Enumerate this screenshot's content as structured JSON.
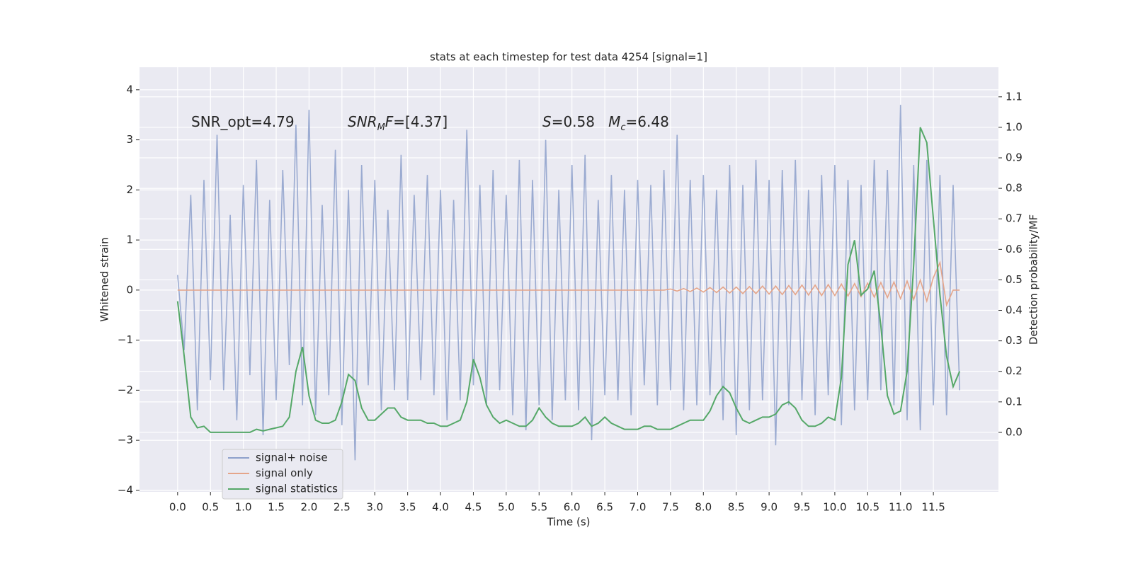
{
  "chart_data": {
    "type": "line",
    "title": "stats at each timestep for test data 4254 [signal=1]",
    "xlabel": "Time (s)",
    "ylabel": "Whitened strain",
    "y2label": "Detection probability/MF",
    "annotations": [
      [
        {
          "text": "SNR_opt=4.79"
        }
      ],
      [
        {
          "text": "SNR",
          "italic": true
        },
        {
          "text": "M",
          "italic": true,
          "sub": true
        },
        {
          "text": "F",
          "italic": true
        },
        {
          "text": "=[4.37]"
        }
      ],
      [
        {
          "text": "S",
          "italic": true
        },
        {
          "text": "=0.58   "
        },
        {
          "text": "M",
          "italic": true
        },
        {
          "text": "c",
          "italic": true,
          "sub": true
        },
        {
          "text": "=6.48"
        }
      ]
    ],
    "x": [
      0,
      0.1,
      0.2,
      0.3,
      0.4,
      0.5,
      0.6,
      0.7,
      0.8,
      0.9,
      1,
      1.1,
      1.2,
      1.3,
      1.4,
      1.5,
      1.6,
      1.7,
      1.8,
      1.9,
      2,
      2.1,
      2.2,
      2.3,
      2.4,
      2.5,
      2.6,
      2.7,
      2.8,
      2.9,
      3,
      3.1,
      3.2,
      3.3,
      3.4,
      3.5,
      3.6,
      3.7,
      3.8,
      3.9,
      4,
      4.1,
      4.2,
      4.3,
      4.4,
      4.5,
      4.6,
      4.7,
      4.8,
      4.9,
      5,
      5.1,
      5.2,
      5.3,
      5.4,
      5.5,
      5.6,
      5.7,
      5.8,
      5.9,
      6,
      6.1,
      6.2,
      6.3,
      6.4,
      6.5,
      6.6,
      6.7,
      6.8,
      6.9,
      7,
      7.1,
      7.2,
      7.3,
      7.4,
      7.5,
      7.6,
      7.7,
      7.8,
      7.9,
      8,
      8.1,
      8.2,
      8.3,
      8.4,
      8.5,
      8.6,
      8.7,
      8.8,
      8.9,
      9,
      9.1,
      9.2,
      9.3,
      9.4,
      9.5,
      9.6,
      9.7,
      9.8,
      9.9,
      10,
      10.1,
      10.2,
      10.3,
      10.4,
      10.5,
      10.6,
      10.7,
      10.8,
      10.9,
      11,
      11.1,
      11.2,
      11.3,
      11.4,
      11.5,
      11.6,
      11.7,
      11.8,
      11.9
    ],
    "series": [
      {
        "name": "signal+ noise",
        "color": "#8da0cb",
        "values": [
          0.3,
          -1.2,
          1.9,
          -2.4,
          2.2,
          -1.8,
          3.1,
          -2.0,
          1.5,
          -2.6,
          2.1,
          -1.7,
          2.6,
          -2.9,
          1.8,
          -2.2,
          2.4,
          -1.5,
          3.3,
          -2.3,
          3.6,
          -2.5,
          1.7,
          -2.1,
          2.8,
          -2.7,
          2.0,
          -3.4,
          2.5,
          -1.9,
          2.2,
          -2.4,
          1.6,
          -2.0,
          2.7,
          -2.2,
          1.9,
          -1.8,
          2.3,
          -2.1,
          2.0,
          -2.6,
          1.8,
          -2.2,
          3.2,
          -1.9,
          2.1,
          -2.3,
          2.4,
          -2.0,
          1.9,
          -2.5,
          2.6,
          -2.8,
          2.2,
          -2.3,
          3.0,
          -2.6,
          2.0,
          -2.2,
          2.5,
          -2.4,
          2.7,
          -3.0,
          1.8,
          -2.1,
          2.3,
          -2.2,
          2.0,
          -2.5,
          2.2,
          -1.9,
          2.1,
          -2.3,
          2.4,
          -2.0,
          3.1,
          -2.4,
          2.2,
          -2.3,
          2.3,
          -2.1,
          2.0,
          -2.6,
          2.5,
          -2.9,
          2.1,
          -2.4,
          2.6,
          -2.2,
          2.2,
          -3.1,
          2.4,
          -2.3,
          2.6,
          -2.2,
          2.0,
          -2.5,
          2.3,
          -2.1,
          2.5,
          -2.7,
          2.2,
          -2.4,
          2.1,
          -2.2,
          2.6,
          -2.0,
          2.4,
          -2.3,
          3.7,
          -2.6,
          2.5,
          -2.8,
          2.6,
          -2.3,
          2.3,
          -2.5,
          2.1,
          -2.0
        ]
      },
      {
        "name": "signal only",
        "color": "#e5a58a",
        "values": [
          0,
          0,
          0,
          0,
          0,
          0,
          0,
          0,
          0,
          0,
          0,
          0,
          0,
          0,
          0,
          0,
          0,
          0,
          0,
          0,
          0,
          0,
          0,
          0,
          0,
          0,
          0,
          0,
          0,
          0,
          0,
          0,
          0,
          0,
          0,
          0,
          0,
          0,
          0,
          0,
          0,
          0,
          0,
          0,
          0,
          0,
          0,
          0,
          0,
          0,
          0,
          0,
          0,
          0,
          0,
          0,
          0,
          0,
          0,
          0,
          0,
          0,
          0,
          0,
          0,
          0,
          0,
          0,
          0,
          0,
          0,
          0,
          0,
          0,
          0,
          0.02,
          -0.02,
          0.03,
          -0.03,
          0.04,
          -0.04,
          0.05,
          -0.05,
          0.06,
          -0.06,
          0.06,
          -0.07,
          0.07,
          -0.07,
          0.08,
          -0.08,
          0.08,
          -0.09,
          0.09,
          -0.09,
          0.1,
          -0.1,
          0.1,
          -0.11,
          0.11,
          -0.11,
          0.12,
          -0.12,
          0.13,
          -0.13,
          0.14,
          -0.14,
          0.15,
          -0.15,
          0.16,
          -0.17,
          0.18,
          -0.19,
          0.2,
          -0.22,
          0.25,
          0.55,
          -0.3,
          0,
          0
        ]
      },
      {
        "name": "signal statistics",
        "color": "#55a868",
        "axis": "y2",
        "values": [
          0.43,
          0.25,
          0.05,
          0.015,
          0.02,
          0,
          0,
          0,
          0,
          0,
          0,
          0,
          0.01,
          0.005,
          0.01,
          0.015,
          0.02,
          0.05,
          0.2,
          0.28,
          0.12,
          0.04,
          0.03,
          0.03,
          0.04,
          0.1,
          0.19,
          0.17,
          0.08,
          0.04,
          0.04,
          0.06,
          0.08,
          0.08,
          0.05,
          0.04,
          0.04,
          0.04,
          0.03,
          0.03,
          0.02,
          0.02,
          0.03,
          0.04,
          0.1,
          0.24,
          0.18,
          0.09,
          0.05,
          0.03,
          0.04,
          0.03,
          0.02,
          0.02,
          0.04,
          0.08,
          0.05,
          0.03,
          0.02,
          0.02,
          0.02,
          0.03,
          0.05,
          0.02,
          0.03,
          0.05,
          0.03,
          0.02,
          0.01,
          0.01,
          0.01,
          0.02,
          0.02,
          0.01,
          0.01,
          0.01,
          0.02,
          0.03,
          0.04,
          0.04,
          0.04,
          0.07,
          0.12,
          0.15,
          0.13,
          0.08,
          0.04,
          0.03,
          0.04,
          0.05,
          0.05,
          0.06,
          0.09,
          0.1,
          0.08,
          0.04,
          0.02,
          0.02,
          0.03,
          0.05,
          0.04,
          0.18,
          0.55,
          0.63,
          0.45,
          0.47,
          0.53,
          0.35,
          0.12,
          0.06,
          0.07,
          0.2,
          0.55,
          1.0,
          0.95,
          0.7,
          0.45,
          0.25,
          0.15,
          0.2
        ]
      }
    ],
    "xlim": [
      -0.58,
      12.49
    ],
    "ylim": [
      -4.03,
      4.45
    ],
    "y2lim": [
      -0.195,
      1.197
    ],
    "xticks": [
      {
        "value": 0,
        "label": "0.0"
      },
      0.5,
      {
        "value": 1,
        "label": "1.0"
      },
      1.5,
      {
        "value": 2,
        "label": "2.0"
      },
      2.5,
      {
        "value": 3,
        "label": "3.0"
      },
      3.5,
      {
        "value": 4,
        "label": "4.0"
      },
      4.5,
      {
        "value": 5,
        "label": "5.0"
      },
      5.5,
      {
        "value": 6,
        "label": "6.0"
      },
      6.5,
      {
        "value": 7,
        "label": "7.0"
      },
      7.5,
      {
        "value": 8,
        "label": "8.0"
      },
      8.5,
      {
        "value": 9,
        "label": "9.0"
      },
      9.5,
      {
        "value": 10,
        "label": "10.0"
      },
      10.5,
      {
        "value": 11,
        "label": "11.0"
      },
      11.5
    ],
    "yticks": [
      {
        "value": -4,
        "label": "−4"
      },
      {
        "value": -3,
        "label": "−3"
      },
      {
        "value": -2,
        "label": "−2"
      },
      {
        "value": -1,
        "label": "−1"
      },
      0,
      1,
      2,
      3,
      4
    ],
    "y2ticks": [
      {
        "value": 0,
        "label": "0.0"
      },
      0.1,
      0.2,
      0.3,
      0.4,
      0.5,
      0.6,
      0.7,
      0.8,
      0.9,
      {
        "value": 1,
        "label": "1.0"
      },
      1.1
    ],
    "grid": true,
    "legend": "lower left"
  }
}
